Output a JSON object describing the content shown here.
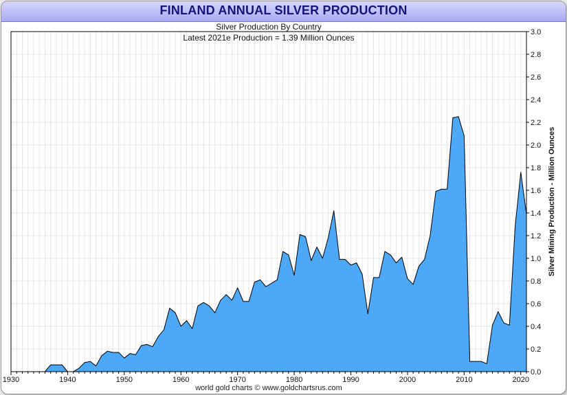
{
  "chart_data": {
    "type": "area",
    "title": "FINLAND ANNUAL SILVER PRODUCTION",
    "subtitle": "Silver Production By Country",
    "annotation": "Latest 2021e Production = 1.39 Million Ounces",
    "ylabel": "Silver Mining Production - Million Ounces",
    "xlabel": "",
    "source": "world gold charts © www.goldchartsrus.com",
    "xlim": [
      1930,
      2021
    ],
    "ylim": [
      0,
      3.0
    ],
    "x_ticks": [
      "1930",
      "1940",
      "1950",
      "1960",
      "1970",
      "1980",
      "1990",
      "2000",
      "2010",
      "2020"
    ],
    "y_ticks": [
      "0.0",
      "0.2",
      "0.4",
      "0.6",
      "0.8",
      "1.0",
      "1.2",
      "1.4",
      "1.6",
      "1.8",
      "2.0",
      "2.2",
      "2.4",
      "2.6",
      "2.8",
      "3.0"
    ],
    "fill_color": "#4da8f7",
    "line_color": "#000000",
    "grid_color": "#e6e6e6",
    "x": [
      1930,
      1931,
      1932,
      1933,
      1934,
      1935,
      1936,
      1937,
      1938,
      1939,
      1940,
      1941,
      1942,
      1943,
      1944,
      1945,
      1946,
      1947,
      1948,
      1949,
      1950,
      1951,
      1952,
      1953,
      1954,
      1955,
      1956,
      1957,
      1958,
      1959,
      1960,
      1961,
      1962,
      1963,
      1964,
      1965,
      1966,
      1967,
      1968,
      1969,
      1970,
      1971,
      1972,
      1973,
      1974,
      1975,
      1976,
      1977,
      1978,
      1979,
      1980,
      1981,
      1982,
      1983,
      1984,
      1985,
      1986,
      1987,
      1988,
      1989,
      1990,
      1991,
      1992,
      1993,
      1994,
      1995,
      1996,
      1997,
      1998,
      1999,
      2000,
      2001,
      2002,
      2003,
      2004,
      2005,
      2006,
      2007,
      2008,
      2009,
      2010,
      2011,
      2012,
      2013,
      2014,
      2015,
      2016,
      2017,
      2018,
      2019,
      2020,
      2021
    ],
    "values": [
      0,
      0,
      0,
      0,
      0,
      0,
      0,
      0.06,
      0.06,
      0.06,
      0,
      0,
      0.03,
      0.08,
      0.09,
      0.05,
      0.14,
      0.18,
      0.17,
      0.17,
      0.12,
      0.16,
      0.15,
      0.23,
      0.24,
      0.22,
      0.31,
      0.37,
      0.56,
      0.52,
      0.4,
      0.45,
      0.38,
      0.58,
      0.61,
      0.58,
      0.52,
      0.63,
      0.68,
      0.63,
      0.74,
      0.62,
      0.62,
      0.79,
      0.81,
      0.75,
      0.78,
      0.81,
      1.06,
      1.03,
      0.85,
      1.21,
      1.19,
      0.98,
      1.1,
      1.0,
      1.18,
      1.42,
      0.99,
      0.99,
      0.94,
      0.96,
      0.86,
      0.51,
      0.83,
      0.83,
      1.06,
      1.03,
      0.96,
      1.01,
      0.82,
      0.77,
      0.93,
      0.99,
      1.2,
      1.59,
      1.61,
      1.61,
      2.24,
      2.25,
      2.08,
      0.09,
      0.09,
      0.09,
      0.07,
      0.41,
      0.53,
      0.43,
      0.41,
      1.28,
      1.76,
      1.39
    ]
  }
}
